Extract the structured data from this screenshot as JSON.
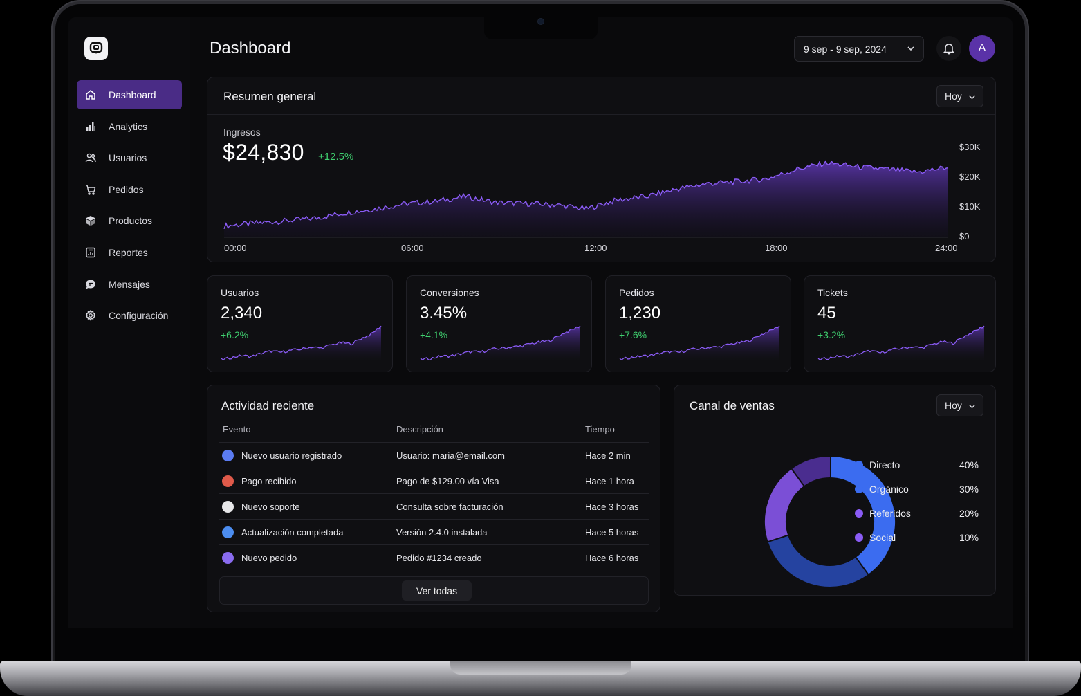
{
  "header": {
    "title": "Dashboard",
    "date_range": "9 sep - 9 sep, 2024",
    "avatar_initial": "A"
  },
  "sidebar": {
    "items": [
      {
        "label": "Dashboard",
        "icon": "home-icon",
        "active": true
      },
      {
        "label": "Analytics",
        "icon": "bar-chart-icon"
      },
      {
        "label": "Usuarios",
        "icon": "users-icon"
      },
      {
        "label": "Pedidos",
        "icon": "cart-icon"
      },
      {
        "label": "Productos",
        "icon": "box-icon"
      },
      {
        "label": "Reportes",
        "icon": "report-icon"
      },
      {
        "label": "Mensajes",
        "icon": "message-icon"
      },
      {
        "label": "Configuración",
        "icon": "gear-icon"
      }
    ]
  },
  "overview": {
    "title": "Resumen general",
    "period": "Hoy",
    "metric_label": "Ingresos",
    "metric_value": "$24,830",
    "metric_delta": "+12.5%"
  },
  "chart_data": [
    {
      "type": "area",
      "title": "Ingresos",
      "x_ticks": [
        "00:00",
        "06:00",
        "12:00",
        "18:00",
        "24:00"
      ],
      "y_ticks": [
        "$30K",
        "$20K",
        "$10K",
        "$0"
      ],
      "ylim": [
        0,
        30000
      ],
      "grid": false,
      "line_color": "#8b5cf6",
      "x": [
        0,
        1,
        2,
        3,
        4,
        5,
        6,
        7,
        8,
        9,
        10,
        11,
        12,
        13,
        14,
        15,
        16,
        17,
        18,
        19,
        20,
        21,
        22,
        23,
        24
      ],
      "values": [
        3400,
        4300,
        5000,
        5900,
        7600,
        8900,
        10500,
        11300,
        12900,
        10900,
        10600,
        10200,
        8900,
        11700,
        12900,
        15300,
        17000,
        17600,
        18600,
        21700,
        23700,
        22400,
        21600,
        20700,
        22300
      ]
    },
    {
      "type": "area",
      "title": "Usuarios",
      "line_color": "#8b5cf6",
      "values": [
        1,
        2,
        3,
        2.5,
        4,
        5,
        4.5,
        5.5,
        6,
        7,
        6.5,
        8,
        9,
        8.5,
        11,
        13,
        17
      ]
    },
    {
      "type": "area",
      "title": "Conversiones",
      "line_color": "#8b5cf6",
      "values": [
        1,
        1.5,
        2.5,
        2.6,
        3.5,
        4.5,
        4.3,
        5.5,
        6,
        6.5,
        7,
        8,
        8.8,
        9.5,
        12,
        14,
        16
      ]
    },
    {
      "type": "area",
      "title": "Pedidos",
      "line_color": "#8b5cf6",
      "values": [
        1,
        2,
        2.6,
        3,
        4,
        4.8,
        4.5,
        5.8,
        6.2,
        6.9,
        7,
        8.3,
        9,
        10,
        12.5,
        14.5,
        17
      ]
    },
    {
      "type": "area",
      "title": "Tickets",
      "line_color": "#8b5cf6",
      "values": [
        1,
        1.8,
        2.7,
        2.4,
        3.9,
        5.2,
        4.2,
        5.6,
        6.4,
        7.1,
        6.6,
        8.2,
        9.5,
        8.8,
        11.8,
        14.2,
        17
      ]
    },
    {
      "type": "pie",
      "title": "Canal de ventas",
      "categories": [
        "Directo",
        "Orgánico",
        "Referidos",
        "Social"
      ],
      "values": [
        40,
        30,
        20,
        10
      ],
      "colors": [
        "#3b6cf0",
        "#2543a0",
        "#7b4fd6",
        "#4a2d8f"
      ]
    }
  ],
  "kpis": [
    {
      "label": "Usuarios",
      "value": "2,340",
      "delta": "+6.2%"
    },
    {
      "label": "Conversiones",
      "value": "3.45%",
      "delta": "+4.1%"
    },
    {
      "label": "Pedidos",
      "value": "1,230",
      "delta": "+7.6%"
    },
    {
      "label": "Tickets",
      "value": "45",
      "delta": "+3.2%"
    }
  ],
  "activity": {
    "title": "Actividad reciente",
    "columns": [
      "Evento",
      "Descripción",
      "Tiempo"
    ],
    "rows": [
      {
        "icon": "user-icon",
        "event": "Nuevo usuario registrado",
        "description": "Usuario: maria@email.com",
        "time": "Hace 2 min",
        "icon_color": "#5b7cf2"
      },
      {
        "icon": "payment-icon",
        "event": "Pago recibido",
        "description": "Pago de $129.00 vía Visa",
        "time": "Hace 1 hora",
        "icon_color": "#e05a4a"
      },
      {
        "icon": "support-icon",
        "event": "Nuevo soporte",
        "description": "Consulta sobre facturación",
        "time": "Hace 3 horas",
        "icon_color": "#e8e8ea"
      },
      {
        "icon": "update-icon",
        "event": "Actualización completada",
        "description": "Versión 2.4.0 instalada",
        "time": "Hace 5 horas",
        "icon_color": "#4c8df0"
      },
      {
        "icon": "order-icon",
        "event": "Nuevo pedido",
        "description": "Pedido #1234 creado",
        "time": "Hace 6 horas",
        "icon_color": "#8a6cf0"
      }
    ],
    "view_all": "Ver todas"
  },
  "channels": {
    "title": "Canal de ventas",
    "period": "Hoy",
    "items": [
      {
        "name": "Directo",
        "pct": "40%",
        "color": "#3b6cf0"
      },
      {
        "name": "Orgánico",
        "pct": "30%",
        "color": "#3b6cf0"
      },
      {
        "name": "Referidos",
        "pct": "20%",
        "color": "#8b5cf6"
      },
      {
        "name": "Social",
        "pct": "10%",
        "color": "#8b5cf6"
      }
    ]
  }
}
